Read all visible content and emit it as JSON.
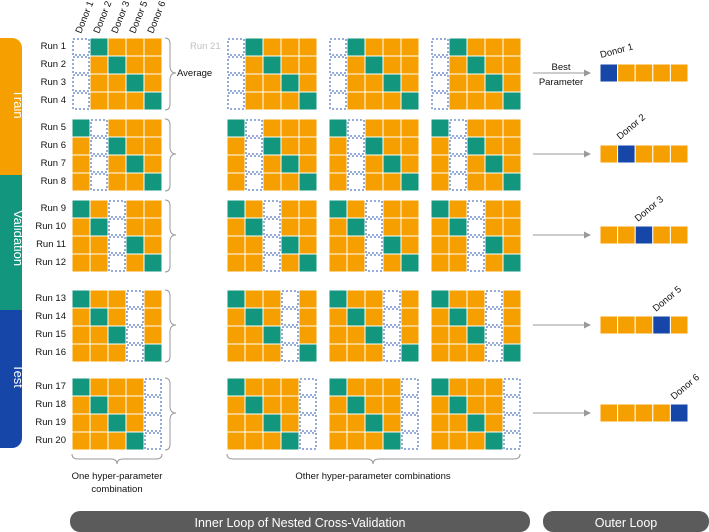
{
  "sidebar": [
    {
      "label": "Train",
      "color": "#f5a000"
    },
    {
      "label": "Validation",
      "color": "#13967e"
    },
    {
      "label": "Test",
      "color": "#1546a8"
    }
  ],
  "donors": [
    "Donor 1",
    "Donor 2",
    "Donor 3",
    "Donor 5",
    "Donor 6"
  ],
  "runs": [
    "Run 1",
    "Run 2",
    "Run 3",
    "Run 4",
    "Run 5",
    "Run 6",
    "Run 7",
    "Run 8",
    "Run 9",
    "Run 10",
    "Run 11",
    "Run 12",
    "Run 13",
    "Run 14",
    "Run 15",
    "Run 16",
    "Run 17",
    "Run 18",
    "Run 19",
    "Run 20"
  ],
  "ghost_run_label": "Run 21",
  "average_label": "Average",
  "best_parameter_label": [
    "Best",
    "Parameter"
  ],
  "outer_donor_labels": [
    "Donor 1",
    "Donor 2",
    "Donor 3",
    "Donor 5",
    "Donor 6"
  ],
  "one_combination_label": [
    "One hyper-parameter",
    "combination"
  ],
  "other_combinations_label": "Other hyper-parameter combinations",
  "inner_loop_label": "Inner Loop of Nested Cross-Validation",
  "outer_loop_label": "Outer Loop",
  "colors": {
    "train": "#f5a000",
    "validation": "#13967e",
    "test": "#1546a8",
    "test_dashed": "#2b58b4",
    "footer": "#5b5b5b",
    "arrow": "#9a9a9a"
  }
}
